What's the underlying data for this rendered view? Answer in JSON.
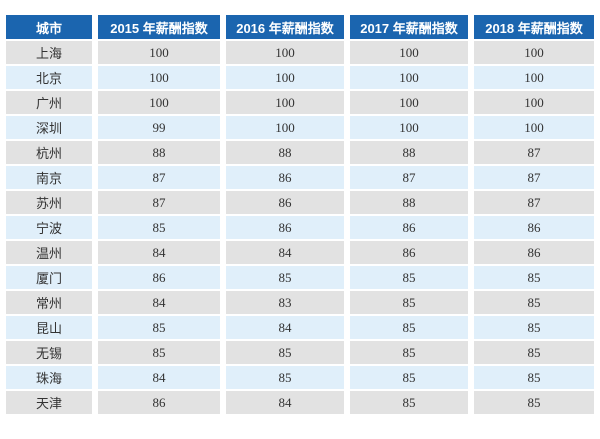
{
  "table": {
    "columns": [
      "城市",
      "2015 年薪酬指数",
      "2016 年薪酬指数",
      "2017 年薪酬指数",
      "2018 年薪酬指数"
    ],
    "rows": [
      {
        "city": "上海",
        "values": [
          100,
          100,
          100,
          100
        ]
      },
      {
        "city": "北京",
        "values": [
          100,
          100,
          100,
          100
        ]
      },
      {
        "city": "广州",
        "values": [
          100,
          100,
          100,
          100
        ]
      },
      {
        "city": "深圳",
        "values": [
          99,
          100,
          100,
          100
        ]
      },
      {
        "city": "杭州",
        "values": [
          88,
          88,
          88,
          87
        ]
      },
      {
        "city": "南京",
        "values": [
          87,
          86,
          87,
          87
        ]
      },
      {
        "city": "苏州",
        "values": [
          87,
          86,
          88,
          87
        ]
      },
      {
        "city": "宁波",
        "values": [
          85,
          86,
          86,
          86
        ]
      },
      {
        "city": "温州",
        "values": [
          84,
          84,
          86,
          86
        ]
      },
      {
        "city": "厦门",
        "values": [
          86,
          85,
          85,
          85
        ]
      },
      {
        "city": "常州",
        "values": [
          84,
          83,
          85,
          85
        ]
      },
      {
        "city": "昆山",
        "values": [
          85,
          84,
          85,
          85
        ]
      },
      {
        "city": "无锡",
        "values": [
          85,
          85,
          85,
          85
        ]
      },
      {
        "city": "珠海",
        "values": [
          84,
          85,
          85,
          85
        ]
      },
      {
        "city": "天津",
        "values": [
          86,
          84,
          85,
          85
        ]
      }
    ]
  },
  "colors": {
    "header_bg": "#1b65af",
    "header_text": "#ffffff",
    "row_odd_bg": "#e2e2e2",
    "row_even_bg": "#e0effa",
    "body_text": "#333333",
    "page_bg": "#ffffff"
  },
  "chart_data": {
    "type": "table",
    "title": "",
    "columns": [
      "城市",
      "2015 年薪酬指数",
      "2016 年薪酬指数",
      "2017 年薪酬指数",
      "2018 年薪酬指数"
    ],
    "categories": [
      "上海",
      "北京",
      "广州",
      "深圳",
      "杭州",
      "南京",
      "苏州",
      "宁波",
      "温州",
      "厦门",
      "常州",
      "昆山",
      "无锡",
      "珠海",
      "天津"
    ],
    "series": [
      {
        "name": "2015 年薪酬指数",
        "values": [
          100,
          100,
          100,
          99,
          88,
          87,
          87,
          85,
          84,
          86,
          84,
          85,
          85,
          84,
          86
        ]
      },
      {
        "name": "2016 年薪酬指数",
        "values": [
          100,
          100,
          100,
          100,
          88,
          86,
          86,
          86,
          84,
          85,
          83,
          84,
          85,
          85,
          84
        ]
      },
      {
        "name": "2017 年薪酬指数",
        "values": [
          100,
          100,
          100,
          100,
          88,
          87,
          88,
          86,
          86,
          85,
          85,
          85,
          85,
          85,
          85
        ]
      },
      {
        "name": "2018 年薪酬指数",
        "values": [
          100,
          100,
          100,
          100,
          87,
          87,
          87,
          86,
          86,
          85,
          85,
          85,
          85,
          85,
          85
        ]
      }
    ],
    "layout_hints": {
      "header_position": "top",
      "alternating_rows": true,
      "grid": false
    }
  }
}
